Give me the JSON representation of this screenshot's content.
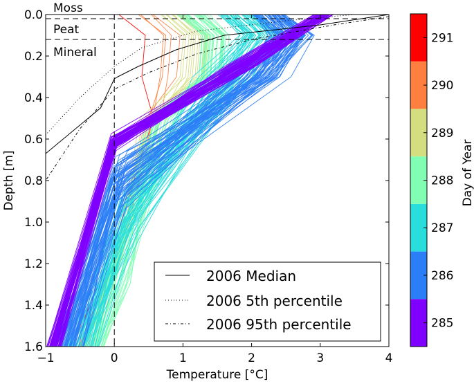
{
  "chart_data": {
    "type": "line",
    "title": "",
    "xlabel": "Temperature [$^\\circ$C]",
    "xlabel_display": "Temperature [°C]",
    "ylabel": "Depth [m]",
    "xlim": [
      -1,
      4
    ],
    "ylim": [
      1.6,
      0.0
    ],
    "y_inverted": true,
    "grid": false,
    "x_ticks": [
      -1,
      0,
      1,
      2,
      3,
      4
    ],
    "x_tick_labels": [
      "−1",
      "0",
      "1",
      "2",
      "3",
      "4"
    ],
    "y_ticks": [
      0.0,
      0.2,
      0.4,
      0.6,
      0.8,
      1.0,
      1.2,
      1.4,
      1.6
    ],
    "y_tick_labels": [
      "0.0",
      "0.2",
      "0.4",
      "0.6",
      "0.8",
      "1.0",
      "1.2",
      "1.4",
      "1.6"
    ],
    "layer_boundaries": [
      {
        "depth": 0.02,
        "style": "dashed"
      },
      {
        "depth": 0.12,
        "style": "dashed"
      }
    ],
    "zero_line": {
      "x": 0,
      "style": "dashed"
    },
    "layer_labels": [
      "Moss",
      "Peat",
      "Mineral"
    ],
    "legend": {
      "location": "lower-right",
      "entries": [
        {
          "label": "2006 Median",
          "style": "solid"
        },
        {
          "label": "2006 5th percentile",
          "style": "dotted"
        },
        {
          "label": "2006 95th percentile",
          "style": "dashdot"
        }
      ]
    },
    "reference_series": [
      {
        "name": "2006 Median",
        "style": "solid",
        "points": [
          [
            4.0,
            0.0
          ],
          [
            3.0,
            0.05
          ],
          [
            1.6,
            0.1
          ],
          [
            0.9,
            0.17
          ],
          [
            0.35,
            0.25
          ],
          [
            0.05,
            0.3
          ],
          [
            0.0,
            0.31
          ],
          [
            -0.2,
            0.45
          ],
          [
            -1.0,
            0.67
          ]
        ]
      },
      {
        "name": "2006 5th percentile",
        "style": "dotted",
        "points": [
          [
            3.5,
            0.0
          ],
          [
            2.5,
            0.03
          ],
          [
            1.2,
            0.08
          ],
          [
            0.4,
            0.16
          ],
          [
            0.0,
            0.25
          ],
          [
            -0.5,
            0.4
          ],
          [
            -1.0,
            0.58
          ]
        ]
      },
      {
        "name": "2006 95th percentile",
        "style": "dashdot",
        "points": [
          [
            4.0,
            0.01
          ],
          [
            3.2,
            0.05
          ],
          [
            2.0,
            0.12
          ],
          [
            1.2,
            0.19
          ],
          [
            0.5,
            0.28
          ],
          [
            0.0,
            0.36
          ],
          [
            -0.5,
            0.55
          ],
          [
            -1.0,
            0.8
          ]
        ]
      }
    ],
    "profile_groups": [
      {
        "day": 285,
        "color": "#7f00ff",
        "count": 60,
        "surface_t": [
          2.9,
          3.2
        ],
        "break_depth": [
          0.57,
          0.66
        ],
        "break_t": [
          -0.05,
          0.05
        ],
        "bottom_t": [
          -1.0,
          -0.75
        ]
      },
      {
        "day": 286,
        "color": "#2c7ef7",
        "count": 60,
        "surface_t": [
          2.0,
          2.5
        ],
        "break_depth": [
          0.65,
          0.95
        ],
        "break_t": [
          -0.05,
          0.2
        ],
        "bottom_t": [
          -0.95,
          -0.4
        ]
      },
      {
        "day": 287,
        "color": "#2adddd",
        "count": 50,
        "surface_t": [
          1.5,
          2.1
        ],
        "break_depth": [
          0.8,
          1.15
        ],
        "break_t": [
          0.0,
          0.4
        ],
        "bottom_t": [
          -0.7,
          -0.2
        ]
      },
      {
        "day": 288,
        "color": "#80ffb4",
        "count": 30,
        "surface_t": [
          0.9,
          1.4
        ],
        "break_depth": [
          0.95,
          1.35
        ],
        "break_t": [
          0.0,
          0.3
        ],
        "bottom_t": [
          -0.45,
          -0.1
        ]
      },
      {
        "day": 289,
        "color": "#d4dd80",
        "count": 12,
        "surface_t": [
          0.6,
          1.0
        ],
        "break_depth": [
          1.05,
          1.2
        ],
        "break_t": [
          0.0,
          0.15
        ],
        "bottom_t": [
          -0.5,
          -0.3
        ]
      },
      {
        "day": 290,
        "color": "#ff7f40",
        "count": 4,
        "surface_t": [
          0.3,
          0.6
        ],
        "break_depth": [
          1.1,
          1.2
        ],
        "break_t": [
          0.0,
          0.1
        ],
        "bottom_t": [
          -0.55,
          -0.45
        ]
      },
      {
        "day": 291,
        "color": "#ff0000",
        "count": 1,
        "surface_t": [
          0.0,
          0.1
        ],
        "break_depth": [
          1.1,
          1.1
        ],
        "break_t": [
          0.0,
          0.0
        ],
        "bottom_t": [
          -0.6,
          -0.6
        ]
      }
    ],
    "colorbar": {
      "label": "Day of Year",
      "ticks": [
        285,
        286,
        287,
        288,
        289,
        290,
        291
      ],
      "tick_labels": [
        "285",
        "286",
        "287",
        "288",
        "289",
        "290",
        "291"
      ],
      "colors": [
        "#7f00ff",
        "#2c7ef7",
        "#2adddd",
        "#80ffb4",
        "#d4dd80",
        "#ff7f40",
        "#ff0000"
      ]
    }
  }
}
